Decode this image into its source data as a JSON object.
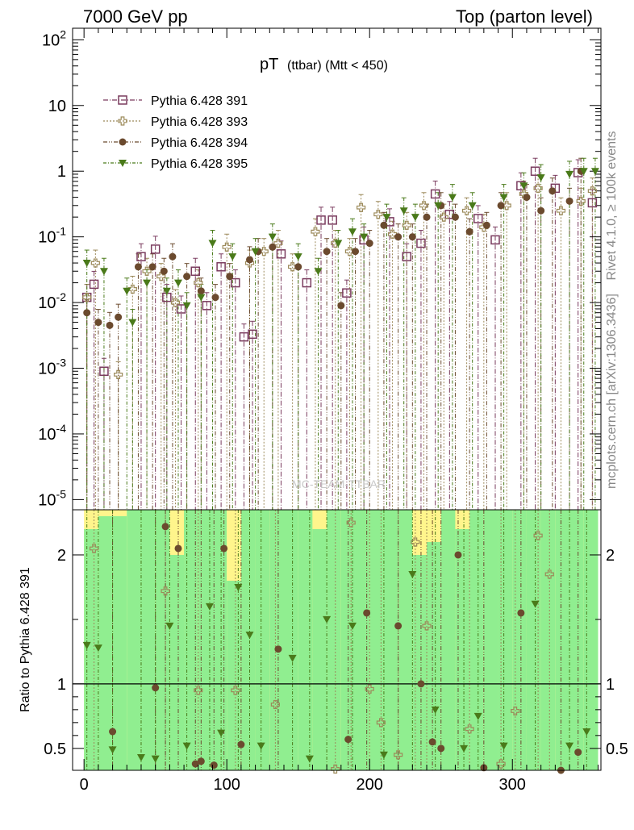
{
  "header": {
    "left_title": "7000 GeV pp",
    "right_title": "Top (parton level)",
    "side_label_top": "Rivet 4.1.0, ≥ 100k events",
    "side_label_bottom": "mcplots.cern.ch [arXiv:1306.3436]",
    "watermark": "MC-TEAM-TTBAR"
  },
  "chart_data": {
    "type": "scatter",
    "title_main": "pT",
    "title_sub": "(ttbar) (Mtt < 450)",
    "main_panel": {
      "yscale": "log",
      "ylim": [
        7e-06,
        150
      ],
      "xlim": [
        -8,
        362
      ],
      "y_tick_labels": [
        "10^2",
        "10",
        "1",
        "10^-1",
        "10^-2",
        "10^-3",
        "10^-4",
        "10^-5"
      ],
      "y_tick_values": [
        100,
        10,
        1,
        0.1,
        0.01,
        0.001,
        0.0001,
        1e-05
      ]
    },
    "ratio_panel": {
      "ylabel": "Ratio to Pythia 6.428 391",
      "ylim": [
        0.33,
        2.35
      ],
      "y_tick_labels": [
        "0.5",
        "1",
        "2"
      ],
      "y_tick_values": [
        0.5,
        1,
        2
      ],
      "reference_line": 1,
      "x_tick_labels": [
        "0",
        "100",
        "200",
        "300"
      ],
      "x_tick_values": [
        0,
        100,
        200,
        300
      ]
    },
    "series": [
      {
        "name": "Pythia 6.428 391",
        "color": "#7a3b5e",
        "marker": "open-square",
        "x": [
          2,
          7,
          14,
          40,
          50,
          58,
          68,
          78,
          86,
          96,
          106,
          112,
          118,
          138,
          156,
          166,
          174,
          184,
          196,
          214,
          226,
          236,
          246,
          256,
          276,
          288,
          306,
          316,
          330,
          346,
          356
        ],
        "y": [
          0.012,
          0.019,
          0.0009,
          0.05,
          0.065,
          0.012,
          0.008,
          0.03,
          0.009,
          0.035,
          0.02,
          0.003,
          0.0033,
          0.055,
          0.02,
          0.18,
          0.18,
          0.014,
          0.09,
          0.17,
          0.05,
          0.08,
          0.45,
          0.22,
          0.19,
          0.09,
          0.6,
          1.0,
          0.55,
          0.95,
          0.33
        ],
        "ratio_x": [],
        "ratio_y": []
      },
      {
        "name": "Pythia 6.428 393",
        "color": "#9c8a5a",
        "marker": "open-cross",
        "x": [
          2,
          8,
          24,
          34,
          44,
          54,
          64,
          80,
          100,
          116,
          126,
          136,
          146,
          162,
          176,
          186,
          194,
          206,
          216,
          226,
          238,
          252,
          268,
          280,
          296,
          308,
          318,
          334,
          348,
          356
        ],
        "y": [
          0.012,
          0.04,
          0.0008,
          0.016,
          0.03,
          0.025,
          0.01,
          0.02,
          0.07,
          0.04,
          0.06,
          0.08,
          0.035,
          0.12,
          0.08,
          0.06,
          0.28,
          0.22,
          0.11,
          0.15,
          0.3,
          0.2,
          0.25,
          0.14,
          0.3,
          0.45,
          0.55,
          0.25,
          0.35,
          0.5
        ],
        "ratio_x": [
          7,
          57,
          80,
          106,
          134,
          176,
          187,
          200,
          208,
          220,
          232,
          240,
          270,
          292,
          302,
          318,
          326
        ],
        "ratio_y": [
          2.05,
          1.72,
          0.95,
          0.95,
          0.84,
          0.34,
          2.25,
          0.96,
          0.7,
          0.45,
          2.1,
          1.45,
          0.65,
          0.38,
          0.79,
          2.15,
          1.85
        ]
      },
      {
        "name": "Pythia 6.428 394",
        "color": "#6b4a2e",
        "marker": "filled-circle",
        "x": [
          2,
          10,
          18,
          24,
          38,
          48,
          56,
          62,
          72,
          82,
          92,
          102,
          116,
          122,
          132,
          150,
          170,
          180,
          190,
          200,
          210,
          220,
          230,
          240,
          250,
          260,
          270,
          282,
          292,
          310,
          320,
          328,
          340,
          348
        ],
        "y": [
          0.007,
          0.005,
          0.0045,
          0.006,
          0.035,
          0.035,
          0.03,
          0.05,
          0.025,
          0.015,
          0.012,
          0.025,
          0.045,
          0.06,
          0.07,
          0.035,
          0.06,
          0.009,
          0.06,
          0.08,
          0.15,
          0.1,
          0.1,
          0.2,
          0.3,
          0.2,
          0.12,
          0.15,
          0.3,
          0.4,
          0.25,
          0.5,
          0.35,
          1.0
        ],
        "ratio_x": [
          20,
          50,
          57,
          66,
          78,
          82,
          91,
          98,
          110,
          136,
          185,
          198,
          220,
          236,
          244,
          250,
          262,
          280,
          306,
          334,
          346
        ],
        "ratio_y": [
          0.63,
          0.97,
          2.22,
          2.05,
          0.38,
          0.4,
          0.37,
          2.05,
          0.53,
          1.27,
          0.57,
          1.55,
          1.45,
          1.0,
          0.55,
          0.5,
          2.0,
          0.35,
          1.55,
          0.33,
          0.47
        ]
      },
      {
        "name": "Pythia 6.428 395",
        "color": "#4a7a1a",
        "marker": "filled-triangle-down",
        "x": [
          2,
          14,
          30,
          34,
          44,
          58,
          66,
          72,
          82,
          90,
          104,
          120,
          132,
          150,
          164,
          178,
          188,
          196,
          212,
          224,
          232,
          248,
          258,
          272,
          294,
          308,
          320,
          340,
          350,
          358
        ],
        "y": [
          0.04,
          0.03,
          0.015,
          0.005,
          0.02,
          0.015,
          0.02,
          0.009,
          0.012,
          0.08,
          0.05,
          0.06,
          0.1,
          0.05,
          0.03,
          0.08,
          0.12,
          0.1,
          0.2,
          0.25,
          0.2,
          0.3,
          0.4,
          0.3,
          0.4,
          0.6,
          0.8,
          0.9,
          1.0,
          1.0
        ],
        "ratio_x": [
          2,
          10,
          20,
          40,
          50,
          60,
          72,
          88,
          96,
          108,
          116,
          124,
          146,
          158,
          170,
          188,
          210,
          230,
          246,
          266,
          276,
          294,
          316,
          340,
          352
        ],
        "ratio_y": [
          1.3,
          1.28,
          0.49,
          0.43,
          0.42,
          1.45,
          0.52,
          1.6,
          0.62,
          1.75,
          1.38,
          0.52,
          1.2,
          0.42,
          1.5,
          1.45,
          0.45,
          1.85,
          0.8,
          0.5,
          0.75,
          0.52,
          1.62,
          0.52,
          0.63
        ]
      }
    ],
    "uncertainty_band": {
      "inner_color": "#90ee90",
      "outer_color": "#fff58c",
      "bins_x": [
        0,
        10,
        20,
        30,
        40,
        50,
        60,
        70,
        80,
        90,
        100,
        110,
        120,
        130,
        140,
        150,
        160,
        170,
        180,
        190,
        200,
        210,
        220,
        230,
        240,
        250,
        260,
        270,
        280,
        290,
        300,
        310,
        320,
        330,
        340,
        350,
        360
      ],
      "inner_hi": [
        2.2,
        2.3,
        2.3,
        2.35,
        2.35,
        2.35,
        2.0,
        2.35,
        2.35,
        2.35,
        1.8,
        2.35,
        2.35,
        2.35,
        2.35,
        2.35,
        2.2,
        2.35,
        2.35,
        2.35,
        2.35,
        2.35,
        2.35,
        2.0,
        2.1,
        2.35,
        2.2,
        2.35,
        2.35,
        2.35,
        2.35,
        2.35,
        2.35,
        2.35,
        2.35,
        2.35
      ],
      "outer_hi": [
        2.35,
        2.35,
        2.35,
        2.35,
        2.35,
        2.35,
        2.35,
        2.35,
        2.35,
        2.35,
        2.35,
        2.35,
        2.35,
        2.35,
        2.35,
        2.35,
        2.35,
        2.35,
        2.35,
        2.35,
        2.35,
        2.35,
        2.35,
        2.35,
        2.35,
        2.35,
        2.35,
        2.35,
        2.35,
        2.35,
        2.35,
        2.35,
        2.35,
        2.35,
        2.35,
        2.35
      ]
    }
  }
}
